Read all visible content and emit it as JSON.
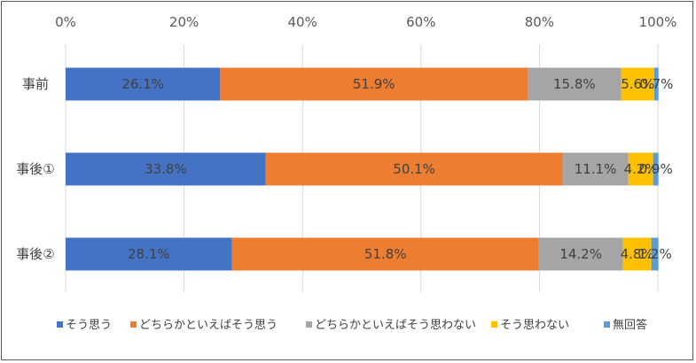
{
  "chart_data": {
    "type": "bar",
    "orientation": "horizontal",
    "stacked": "percent",
    "categories": [
      "事前",
      "事後①",
      "事後②"
    ],
    "series": [
      {
        "name": "そう思う",
        "values": [
          26.1,
          33.8,
          28.1
        ],
        "labels": [
          "26.1%",
          "33.8%",
          "28.1%"
        ],
        "color": "#4472C4"
      },
      {
        "name": "どちらかといえばそう思う",
        "values": [
          51.9,
          50.1,
          51.8
        ],
        "labels": [
          "51.9%",
          "50.1%",
          "51.8%"
        ],
        "color": "#ED7D31"
      },
      {
        "name": "どちらかといえばそう思わない",
        "values": [
          15.8,
          11.1,
          14.2
        ],
        "labels": [
          "15.8%",
          "11.1%",
          "14.2%"
        ],
        "color": "#A5A5A5"
      },
      {
        "name": "そう思わない",
        "values": [
          5.6,
          4.2,
          4.8
        ],
        "labels": [
          "5.6%",
          "4.2%",
          "4.8%"
        ],
        "color": "#FFC000"
      },
      {
        "name": "無回答",
        "values": [
          0.7,
          0.9,
          1.2
        ],
        "labels": [
          "0.7%",
          "0.9%",
          "1.2%"
        ],
        "color": "#5B9BD5"
      }
    ],
    "xticks": [
      "0%",
      "20%",
      "40%",
      "60%",
      "80%",
      "100%"
    ],
    "xlim": [
      0,
      100
    ],
    "grid": true,
    "legend_position": "bottom"
  }
}
